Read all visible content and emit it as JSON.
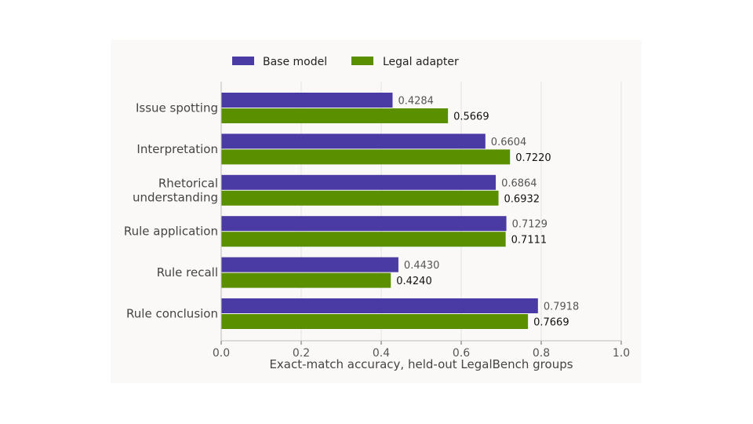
{
  "chart_data": {
    "type": "bar",
    "orientation": "horizontal",
    "categories": [
      [
        "Issue spotting"
      ],
      [
        "Interpretation"
      ],
      [
        "Rhetorical",
        "understanding"
      ],
      [
        "Rule application"
      ],
      [
        "Rule recall"
      ],
      [
        "Rule conclusion"
      ]
    ],
    "series": [
      {
        "name": "Base model",
        "color": "#4a3aa4",
        "values": [
          0.4284,
          0.6604,
          0.6864,
          0.7129,
          0.443,
          0.7918
        ],
        "labels": [
          "0.4284",
          "0.6604",
          "0.6864",
          "0.7129",
          "0.4430",
          "0.7918"
        ]
      },
      {
        "name": "Legal adapter",
        "color": "#5a8f00",
        "values": [
          0.5669,
          0.722,
          0.6932,
          0.7111,
          0.424,
          0.7669
        ],
        "labels": [
          "0.5669",
          "0.7220",
          "0.6932",
          "0.7111",
          "0.4240",
          "0.7669"
        ]
      }
    ],
    "xlabel": "Exact-match accuracy, held-out LegalBench groups",
    "xlim": [
      0,
      1
    ],
    "xticks": [
      "0.0",
      "0.2",
      "0.4",
      "0.6",
      "0.8",
      "1.0"
    ],
    "grid": "vertical",
    "legend": "top"
  }
}
